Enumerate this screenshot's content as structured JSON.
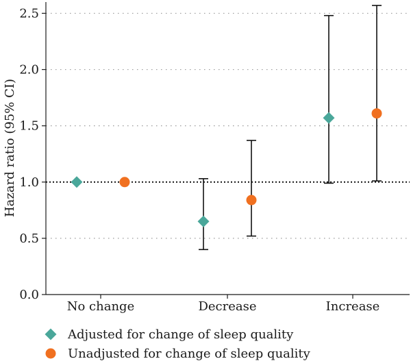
{
  "chart_data": {
    "type": "scatter",
    "title": "",
    "xlabel": "",
    "ylabel": "Hazard ratio (95% CI)",
    "categories": [
      "No change",
      "Decrease",
      "Increase"
    ],
    "ylim": [
      0,
      2.6
    ],
    "yticks": [
      "0.0",
      "0.5",
      "1.0",
      "1.5",
      "2.0",
      "2.5"
    ],
    "reference_line": 1.0,
    "grid": "dotted horizontal",
    "legend_position": "bottom-left",
    "series": [
      {
        "name": "Adjusted for change of sleep quality",
        "marker": "diamond",
        "color": "#4aa79a",
        "values": [
          1.0,
          0.65,
          1.57
        ],
        "ci_lower": [
          null,
          0.4,
          0.99
        ],
        "ci_upper": [
          null,
          1.03,
          2.48
        ]
      },
      {
        "name": "Unadjusted for change of sleep quality",
        "marker": "circle",
        "color": "#f07020",
        "values": [
          1.0,
          0.84,
          1.61
        ],
        "ci_lower": [
          null,
          0.52,
          1.01
        ],
        "ci_upper": [
          null,
          1.37,
          2.57
        ]
      }
    ]
  }
}
